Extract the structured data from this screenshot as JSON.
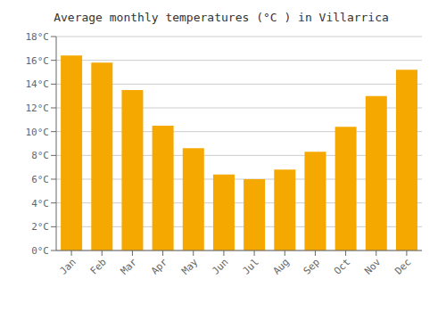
{
  "chart_data": {
    "type": "bar",
    "title": "Average monthly temperatures (°C ) in Villarrica",
    "categories": [
      "Jan",
      "Feb",
      "Mar",
      "Apr",
      "May",
      "Jun",
      "Jul",
      "Aug",
      "Sep",
      "Oct",
      "Nov",
      "Dec"
    ],
    "values": [
      16.4,
      15.8,
      13.5,
      10.5,
      8.6,
      6.4,
      6.0,
      6.8,
      8.3,
      10.4,
      13.0,
      15.2
    ],
    "color": "#F5A800",
    "ylim": [
      0,
      18
    ],
    "yticks": [
      {
        "value": 0,
        "label": "0°C"
      },
      {
        "value": 2,
        "label": "2°C"
      },
      {
        "value": 4,
        "label": "4°C"
      },
      {
        "value": 6,
        "label": "6°C"
      },
      {
        "value": 8,
        "label": "8°C"
      },
      {
        "value": 10,
        "label": "10°C"
      },
      {
        "value": 12,
        "label": "12°C"
      },
      {
        "value": 14,
        "label": "14°C"
      },
      {
        "value": 16,
        "label": "16°C"
      },
      {
        "value": 18,
        "label": "18°C"
      }
    ],
    "grid": true
  }
}
